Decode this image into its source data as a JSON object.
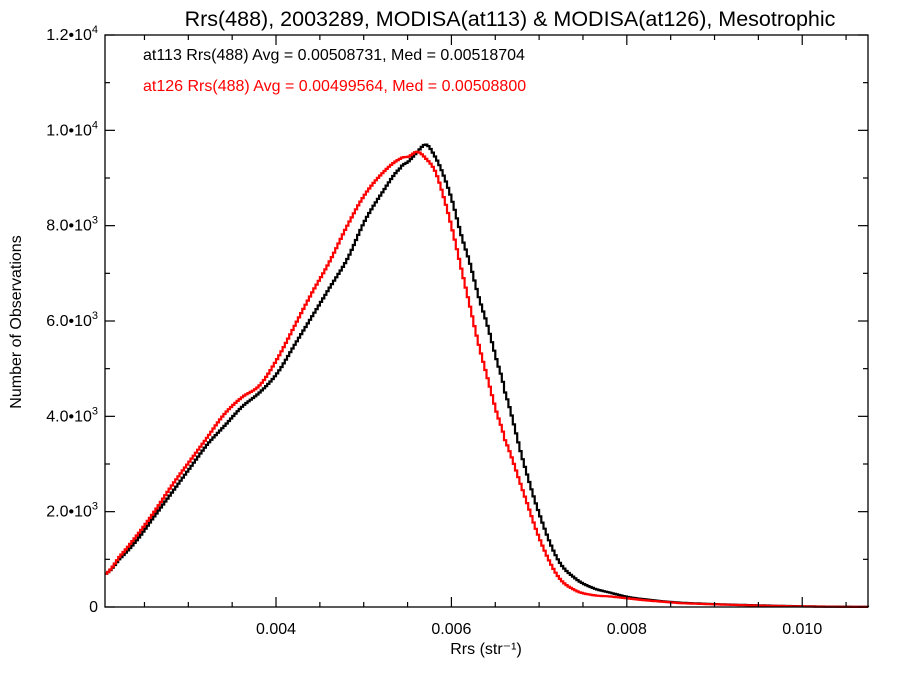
{
  "chart_data": {
    "type": "line",
    "title": "Rrs(488), 2003289, MODISA(at113) & MODISA(at126), Mesotrophic",
    "xlabel": "Rrs (str⁻¹)",
    "ylabel": "Number of Observations",
    "xlim": [
      0.00205,
      0.01075
    ],
    "ylim": [
      0,
      12000
    ],
    "x_ticks": [
      {
        "value": 0.004,
        "label": "0.004"
      },
      {
        "value": 0.006,
        "label": "0.006"
      },
      {
        "value": 0.008,
        "label": "0.008"
      },
      {
        "value": 0.01,
        "label": "0.010"
      }
    ],
    "y_ticks": [
      {
        "value": 0,
        "label": "0",
        "exp": ""
      },
      {
        "value": 2000,
        "label": "2.0•10",
        "exp": "3"
      },
      {
        "value": 4000,
        "label": "4.0•10",
        "exp": "3"
      },
      {
        "value": 6000,
        "label": "6.0•10",
        "exp": "3"
      },
      {
        "value": 8000,
        "label": "8.0•10",
        "exp": "3"
      },
      {
        "value": 10000,
        "label": "1.0•10",
        "exp": "4"
      },
      {
        "value": 12000,
        "label": "1.2•10",
        "exp": "4"
      }
    ],
    "x_minor_step": 0.0005,
    "y_minor_step": 1000,
    "grid": false,
    "legend_position": "top-left",
    "series": [
      {
        "name": "at113 Rrs(488) Avg = 0.00508731, Med = 0.00518704",
        "color": "#000000",
        "x": [
          0.00205,
          0.0022,
          0.0024,
          0.0026,
          0.0028,
          0.003,
          0.0032,
          0.0034,
          0.0036,
          0.0038,
          0.004,
          0.0042,
          0.0044,
          0.0046,
          0.0048,
          0.005,
          0.0052,
          0.0054,
          0.0055,
          0.0056,
          0.0057,
          0.0058,
          0.0059,
          0.006,
          0.0061,
          0.0062,
          0.0063,
          0.0064,
          0.0065,
          0.0066,
          0.0068,
          0.007,
          0.0072,
          0.0074,
          0.0076,
          0.0078,
          0.008,
          0.0082,
          0.0084,
          0.0086,
          0.009,
          0.0095,
          0.01,
          0.0105,
          0.01075
        ],
        "y": [
          700,
          1000,
          1400,
          1900,
          2400,
          2900,
          3400,
          3800,
          4200,
          4500,
          4900,
          5500,
          6100,
          6700,
          7300,
          8100,
          8700,
          9200,
          9350,
          9550,
          9700,
          9450,
          9050,
          8500,
          7800,
          7200,
          6500,
          5900,
          5200,
          4500,
          3100,
          1900,
          1000,
          600,
          400,
          300,
          210,
          160,
          120,
          90,
          60,
          35,
          15,
          6,
          3
        ]
      },
      {
        "name": "at126 Rrs(488) Avg = 0.00499564, Med = 0.00508800",
        "color": "#ff0000",
        "x": [
          0.00205,
          0.0022,
          0.0024,
          0.0026,
          0.0028,
          0.003,
          0.0032,
          0.0034,
          0.0036,
          0.0038,
          0.004,
          0.0042,
          0.0044,
          0.0046,
          0.0048,
          0.005,
          0.0052,
          0.0054,
          0.0055,
          0.0056,
          0.0057,
          0.0058,
          0.0059,
          0.006,
          0.0061,
          0.0062,
          0.0063,
          0.0064,
          0.0065,
          0.0066,
          0.0068,
          0.007,
          0.0072,
          0.0074,
          0.0076,
          0.0078,
          0.008,
          0.0082,
          0.0084,
          0.0086,
          0.009,
          0.0095,
          0.01,
          0.0105,
          0.01075
        ],
        "y": [
          700,
          1050,
          1500,
          2000,
          2550,
          3050,
          3550,
          4050,
          4400,
          4650,
          5200,
          5900,
          6600,
          7250,
          8000,
          8650,
          9100,
          9400,
          9450,
          9550,
          9400,
          9150,
          8600,
          7900,
          7100,
          6300,
          5500,
          4800,
          4100,
          3500,
          2450,
          1400,
          650,
          350,
          250,
          220,
          180,
          140,
          110,
          80,
          55,
          30,
          12,
          4,
          2
        ]
      }
    ]
  }
}
